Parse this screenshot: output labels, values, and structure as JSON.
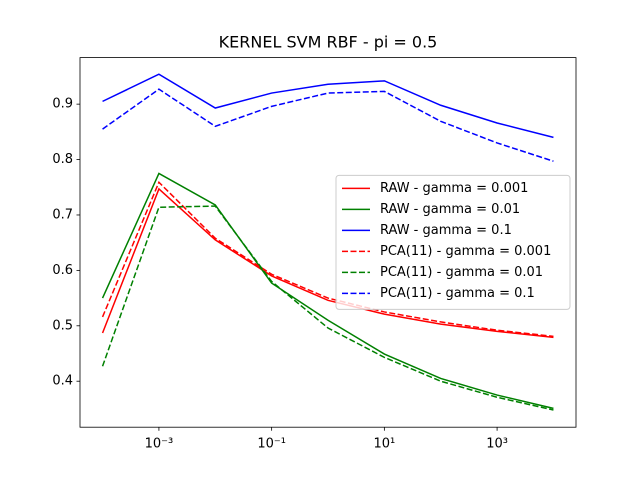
{
  "chart_data": {
    "type": "line",
    "title": "KERNEL SVM RBF - pi = 0.5",
    "x": [
      0.0001,
      0.001,
      0.01,
      0.1,
      1,
      10,
      100,
      1000,
      10000
    ],
    "xscale": "log",
    "xlim": [
      3.98e-05,
      25119
    ],
    "xticks": [
      {
        "value": 0.001,
        "label": "10⁻³"
      },
      {
        "value": 0.1,
        "label": "10⁻¹"
      },
      {
        "value": 10,
        "label": "10¹"
      },
      {
        "value": 1000,
        "label": "10³"
      }
    ],
    "ylim": [
      0.317,
      0.984
    ],
    "yticks": [
      0.4,
      0.5,
      0.6,
      0.7,
      0.8,
      0.9
    ],
    "legend": "center right",
    "series": [
      {
        "name": "RAW - gamma = 0.001",
        "color": "#ff0000",
        "linestyle": "solid",
        "values": [
          0.487,
          0.747,
          0.655,
          0.59,
          0.546,
          0.521,
          0.503,
          0.49,
          0.479
        ]
      },
      {
        "name": "RAW - gamma = 0.01",
        "color": "#008000",
        "linestyle": "solid",
        "values": [
          0.55,
          0.775,
          0.718,
          0.577,
          0.51,
          0.449,
          0.405,
          0.375,
          0.351
        ]
      },
      {
        "name": "RAW - gamma = 0.1",
        "color": "#0000ff",
        "linestyle": "solid",
        "values": [
          0.905,
          0.954,
          0.893,
          0.92,
          0.936,
          0.942,
          0.898,
          0.866,
          0.84
        ]
      },
      {
        "name": "PCA(11) - gamma = 0.001",
        "color": "#ff0000",
        "linestyle": "dashed",
        "values": [
          0.516,
          0.759,
          0.658,
          0.593,
          0.55,
          0.525,
          0.507,
          0.492,
          0.481
        ]
      },
      {
        "name": "PCA(11) - gamma = 0.01",
        "color": "#008000",
        "linestyle": "dashed",
        "values": [
          0.427,
          0.714,
          0.716,
          0.58,
          0.496,
          0.443,
          0.4,
          0.371,
          0.348
        ]
      },
      {
        "name": "PCA(11) - gamma = 0.1",
        "color": "#0000ff",
        "linestyle": "dashed",
        "values": [
          0.855,
          0.927,
          0.86,
          0.896,
          0.92,
          0.923,
          0.869,
          0.83,
          0.797
        ]
      }
    ]
  }
}
